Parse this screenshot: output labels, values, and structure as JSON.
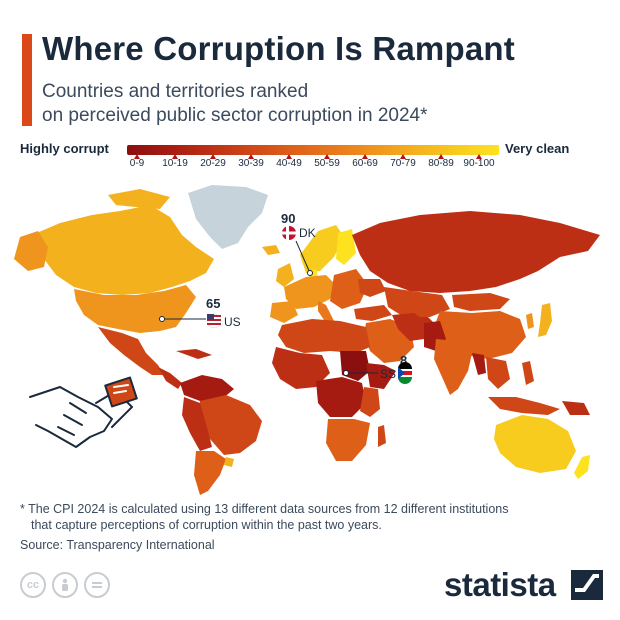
{
  "header": {
    "title": "Where Corruption Is Rampant",
    "subtitle_line1": "Countries and territories ranked",
    "subtitle_line2": "on perceived public sector corruption in 2024*",
    "accent_color": "#d9491a"
  },
  "legend": {
    "low_label": "Highly corrupt",
    "high_label": "Very clean",
    "bins": [
      {
        "label": "0-9",
        "color": "#8b0f0f"
      },
      {
        "label": "10-19",
        "color": "#a51b12"
      },
      {
        "label": "20-29",
        "color": "#bd2f14"
      },
      {
        "label": "30-39",
        "color": "#cf4716"
      },
      {
        "label": "40-49",
        "color": "#de5f18"
      },
      {
        "label": "50-59",
        "color": "#e8781b"
      },
      {
        "label": "60-69",
        "color": "#ef951d"
      },
      {
        "label": "70-79",
        "color": "#f4b11e"
      },
      {
        "label": "80-89",
        "color": "#f8cb1f"
      },
      {
        "label": "90-100",
        "color": "#fde21f"
      }
    ]
  },
  "callouts": [
    {
      "code": "DK",
      "value": "90",
      "flag": "denmark-flag"
    },
    {
      "code": "US",
      "value": "65",
      "flag": "us-flag"
    },
    {
      "code": "SS",
      "value": "8",
      "flag": "south-sudan-flag"
    }
  ],
  "footnote": {
    "line1": "* The CPI 2024 is calculated using 13 different data sources from 12 different institutions",
    "line2": "that capture perceptions of corruption within the past two years.",
    "source": "Source: Transparency International"
  },
  "license_icons": [
    "cc-icon",
    "by-icon",
    "nd-icon"
  ],
  "brand": {
    "name": "statista"
  }
}
